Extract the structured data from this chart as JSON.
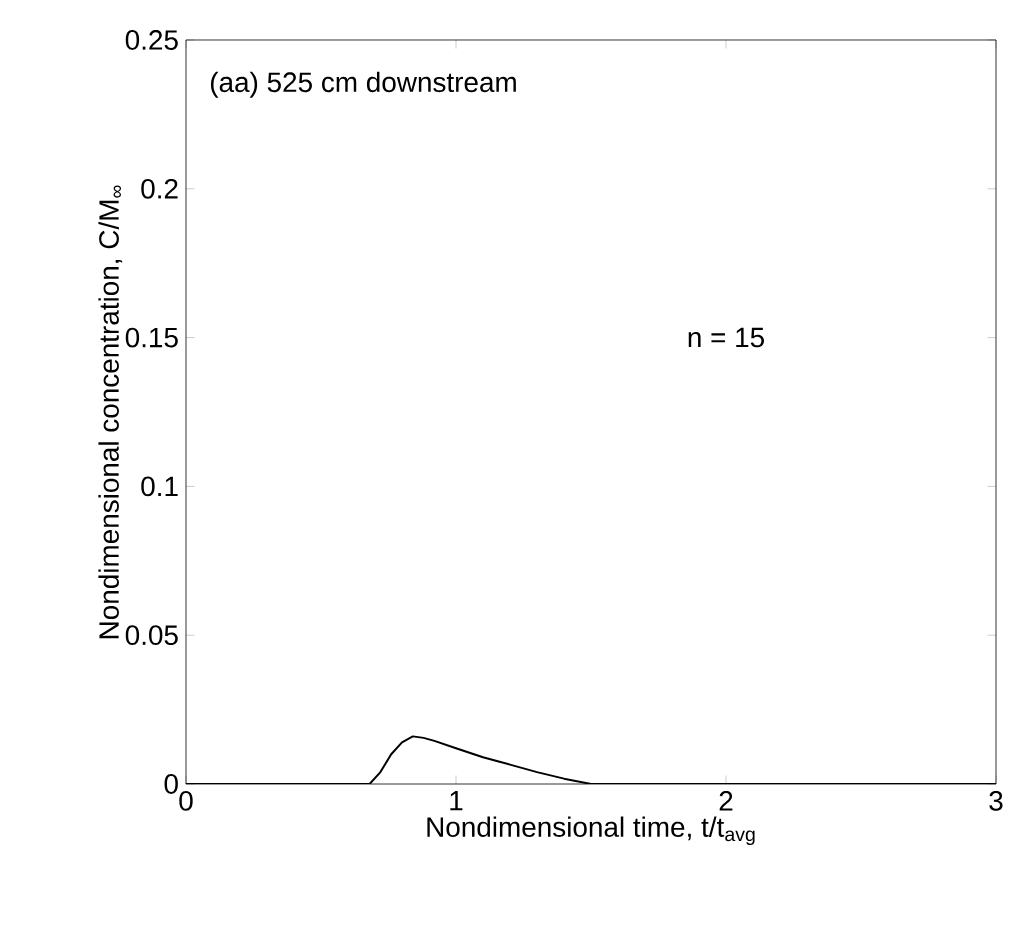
{
  "chart_data": {
    "type": "line",
    "xlabel": "Nondimensional time, t/t$_{avg}$",
    "ylabel": "Nondimensional concentration, C/M$_{∞}$",
    "annotations": [
      "(aa) 525 cm downstream",
      "n = 15"
    ],
    "x": [
      0,
      0.68,
      0.72,
      0.76,
      0.8,
      0.84,
      0.88,
      0.92,
      1.0,
      1.1,
      1.2,
      1.3,
      1.4,
      1.5,
      3
    ],
    "series": [
      {
        "color": "#000000",
        "values": [
          0,
          0,
          0.004,
          0.01,
          0.014,
          0.016,
          0.0155,
          0.0145,
          0.012,
          0.009,
          0.0065,
          0.004,
          0.0018,
          0,
          0
        ]
      }
    ],
    "xlim": [
      0,
      3
    ],
    "ylim": [
      0,
      0.25
    ],
    "xticks": [
      0,
      1,
      2,
      3
    ],
    "yticks": [
      0,
      0.05,
      0.1,
      0.15,
      0.2,
      0.25
    ],
    "marker": "none",
    "line_style": "solid"
  }
}
